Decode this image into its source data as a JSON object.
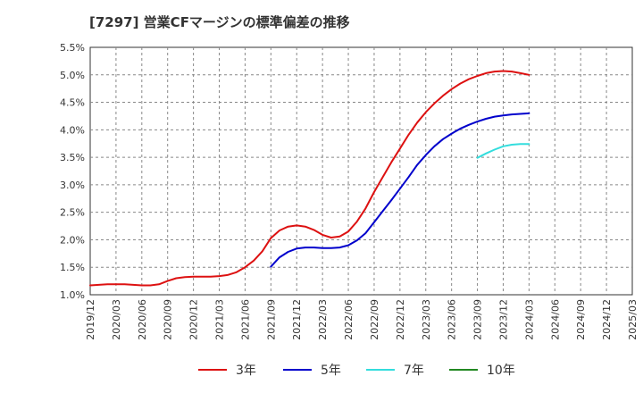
{
  "chart_data": {
    "type": "line",
    "title": "[7297]  営業CFマージンの標準偏差の推移",
    "xlabel": "",
    "ylabel": "",
    "x_ticks": [
      "2019/12",
      "2020/03",
      "2020/06",
      "2020/09",
      "2020/12",
      "2021/03",
      "2021/06",
      "2021/09",
      "2021/12",
      "2022/03",
      "2022/06",
      "2022/09",
      "2022/12",
      "2023/03",
      "2023/06",
      "2023/09",
      "2023/12",
      "2024/03",
      "2024/06",
      "2024/09",
      "2024/12",
      "2025/03"
    ],
    "y_ticks": [
      "1.0%",
      "1.5%",
      "2.0%",
      "2.5%",
      "3.0%",
      "3.5%",
      "4.0%",
      "4.5%",
      "5.0%",
      "5.5%"
    ],
    "ylim": [
      1.0,
      5.5
    ],
    "y_unit": "%",
    "grid": true,
    "legend_position": "bottom",
    "series": [
      {
        "name": "3年",
        "color": "#dd1111",
        "x": [
          "2019/12",
          "2020/01",
          "2020/02",
          "2020/03",
          "2020/04",
          "2020/05",
          "2020/06",
          "2020/07",
          "2020/08",
          "2020/09",
          "2020/10",
          "2020/11",
          "2020/12",
          "2021/01",
          "2021/02",
          "2021/03",
          "2021/04",
          "2021/05",
          "2021/06",
          "2021/07",
          "2021/08",
          "2021/09",
          "2021/10",
          "2021/11",
          "2021/12",
          "2022/01",
          "2022/02",
          "2022/03",
          "2022/04",
          "2022/05",
          "2022/06",
          "2022/07",
          "2022/08",
          "2022/09",
          "2022/10",
          "2022/11",
          "2022/12",
          "2023/01",
          "2023/02",
          "2023/03",
          "2023/04",
          "2023/05",
          "2023/06",
          "2023/07",
          "2023/08",
          "2023/09",
          "2023/10",
          "2023/11",
          "2023/12",
          "2024/01",
          "2024/02",
          "2024/03"
        ],
        "values": [
          1.17,
          1.18,
          1.19,
          1.19,
          1.19,
          1.18,
          1.17,
          1.17,
          1.19,
          1.25,
          1.3,
          1.32,
          1.33,
          1.33,
          1.33,
          1.34,
          1.36,
          1.41,
          1.5,
          1.62,
          1.79,
          2.03,
          2.17,
          2.24,
          2.26,
          2.24,
          2.18,
          2.09,
          2.04,
          2.06,
          2.15,
          2.33,
          2.57,
          2.87,
          3.14,
          3.41,
          3.66,
          3.91,
          4.13,
          4.32,
          4.48,
          4.62,
          4.74,
          4.84,
          4.92,
          4.98,
          5.03,
          5.06,
          5.07,
          5.06,
          5.03,
          5.0
        ]
      },
      {
        "name": "5年",
        "color": "#0000cc",
        "x": [
          "2021/09",
          "2021/10",
          "2021/11",
          "2021/12",
          "2022/01",
          "2022/02",
          "2022/03",
          "2022/04",
          "2022/05",
          "2022/06",
          "2022/07",
          "2022/08",
          "2022/09",
          "2022/10",
          "2022/11",
          "2022/12",
          "2023/01",
          "2023/02",
          "2023/03",
          "2023/04",
          "2023/05",
          "2023/06",
          "2023/07",
          "2023/08",
          "2023/09",
          "2023/10",
          "2023/11",
          "2023/12",
          "2024/01",
          "2024/02",
          "2024/03"
        ],
        "values": [
          1.51,
          1.68,
          1.78,
          1.84,
          1.86,
          1.86,
          1.85,
          1.85,
          1.86,
          1.9,
          1.99,
          2.12,
          2.32,
          2.52,
          2.72,
          2.93,
          3.14,
          3.36,
          3.54,
          3.7,
          3.83,
          3.93,
          4.02,
          4.09,
          4.15,
          4.2,
          4.24,
          4.26,
          4.28,
          4.29,
          4.3
        ]
      },
      {
        "name": "7年",
        "color": "#33dddd",
        "x": [
          "2023/09",
          "2023/10",
          "2023/11",
          "2023/12",
          "2024/01",
          "2024/02",
          "2024/03"
        ],
        "values": [
          3.49,
          3.57,
          3.64,
          3.7,
          3.73,
          3.74,
          3.74
        ]
      },
      {
        "name": "10年",
        "color": "#228822",
        "x": [],
        "values": []
      }
    ]
  }
}
